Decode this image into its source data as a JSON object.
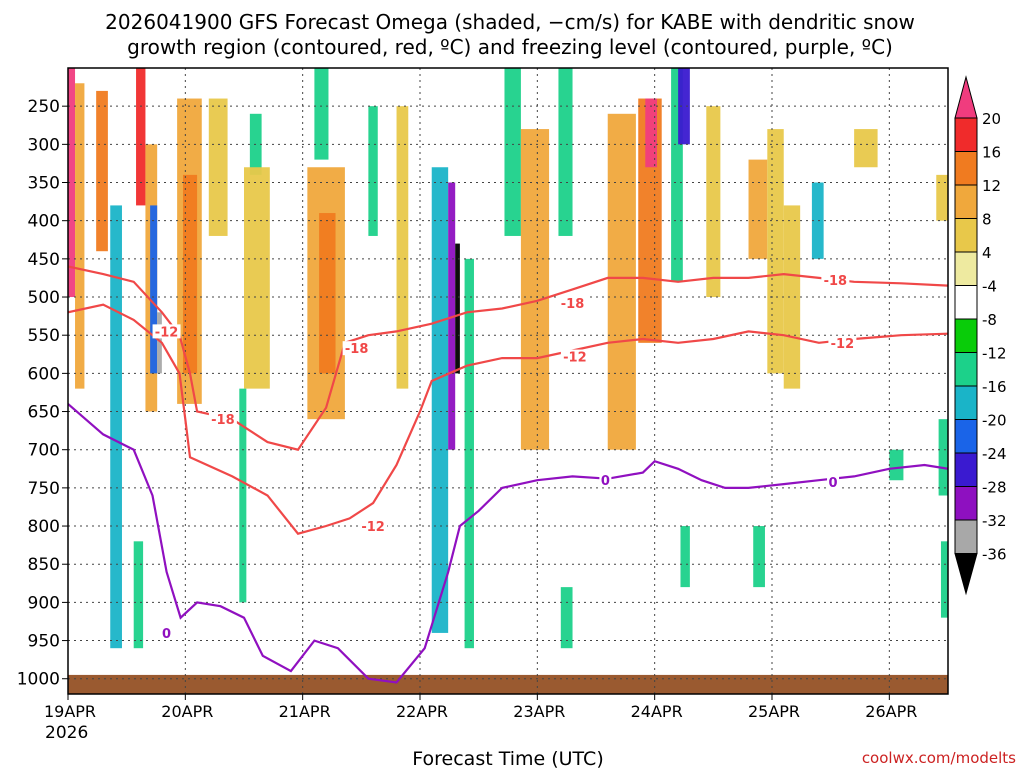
{
  "chart_data": {
    "type": "heatmap",
    "title_line1": "2026041900 GFS Forecast Omega (shaded, −cm/s) for KABE with dendritic snow",
    "title_line2": "growth region (contoured, red, ºC) and freezing level (contoured, purple, ºC)",
    "xlabel": "Forecast Time (UTC)",
    "credit": "coolwx.com/modelts",
    "year_label": "2026",
    "x_ticks": [
      {
        "label": "19APR",
        "day": 0
      },
      {
        "label": "20APR",
        "day": 1
      },
      {
        "label": "21APR",
        "day": 2
      },
      {
        "label": "22APR",
        "day": 3
      },
      {
        "label": "23APR",
        "day": 4
      },
      {
        "label": "24APR",
        "day": 5
      },
      {
        "label": "25APR",
        "day": 6
      },
      {
        "label": "26APR",
        "day": 7
      }
    ],
    "xlim_days": [
      0,
      7.5
    ],
    "y_ticks": [
      "250",
      "300",
      "350",
      "400",
      "450",
      "500",
      "550",
      "600",
      "650",
      "700",
      "750",
      "800",
      "850",
      "900",
      "950",
      "1000"
    ],
    "ylim_hpa": [
      200,
      1020
    ],
    "ground_hpa": 995,
    "colorbar": {
      "labels": [
        "20",
        "16",
        "12",
        "8",
        "4",
        "-4",
        "-8",
        "-12",
        "-16",
        "-20",
        "-24",
        "-28",
        "-32",
        "-36"
      ],
      "colors": [
        "#f03c7e",
        "#f02b2b",
        "#f07b20",
        "#f0a83c",
        "#e8c84a",
        "#eeeaa0",
        "#ffffff",
        "#09cc09",
        "#1cd18a",
        "#1ab4c8",
        "#1a64e8",
        "#3a1ad0",
        "#8e10c0",
        "#a8a8a8",
        "#000000"
      ]
    },
    "omega_cells": [
      {
        "d0": 0.0,
        "d1": 0.06,
        "p0": 200,
        "p1": 500,
        "v": 20
      },
      {
        "d0": 0.06,
        "d1": 0.14,
        "p0": 220,
        "p1": 620,
        "v": 8
      },
      {
        "d0": 0.24,
        "d1": 0.34,
        "p0": 230,
        "p1": 440,
        "v": 12
      },
      {
        "d0": 0.36,
        "d1": 0.46,
        "p0": 380,
        "p1": 960,
        "v": -12
      },
      {
        "d0": 0.58,
        "d1": 0.66,
        "p0": 200,
        "p1": 380,
        "v": 16
      },
      {
        "d0": 0.66,
        "d1": 0.76,
        "p0": 300,
        "p1": 650,
        "v": 8
      },
      {
        "d0": 0.7,
        "d1": 0.76,
        "p0": 380,
        "p1": 600,
        "v": -16
      },
      {
        "d0": 0.76,
        "d1": 0.8,
        "p0": 520,
        "p1": 600,
        "v": -28
      },
      {
        "d0": 0.93,
        "d1": 1.14,
        "p0": 240,
        "p1": 640,
        "v": 8
      },
      {
        "d0": 0.98,
        "d1": 1.1,
        "p0": 340,
        "p1": 600,
        "v": 12
      },
      {
        "d0": 1.2,
        "d1": 1.36,
        "p0": 240,
        "p1": 420,
        "v": 4
      },
      {
        "d0": 1.55,
        "d1": 1.65,
        "p0": 260,
        "p1": 340,
        "v": -8
      },
      {
        "d0": 1.5,
        "d1": 1.72,
        "p0": 330,
        "p1": 620,
        "v": 4
      },
      {
        "d0": 2.04,
        "d1": 2.36,
        "p0": 330,
        "p1": 660,
        "v": 8
      },
      {
        "d0": 2.14,
        "d1": 2.28,
        "p0": 390,
        "p1": 600,
        "v": 12
      },
      {
        "d0": 2.1,
        "d1": 2.22,
        "p0": 200,
        "p1": 320,
        "v": -8
      },
      {
        "d0": 2.56,
        "d1": 2.64,
        "p0": 250,
        "p1": 420,
        "v": -8
      },
      {
        "d0": 2.8,
        "d1": 2.9,
        "p0": 250,
        "p1": 620,
        "v": 4
      },
      {
        "d0": 3.1,
        "d1": 3.24,
        "p0": 330,
        "p1": 940,
        "v": -12
      },
      {
        "d0": 3.24,
        "d1": 3.3,
        "p0": 350,
        "p1": 700,
        "v": -24
      },
      {
        "d0": 3.3,
        "d1": 3.34,
        "p0": 430,
        "p1": 600,
        "v": -36
      },
      {
        "d0": 3.38,
        "d1": 3.46,
        "p0": 450,
        "p1": 960,
        "v": -8
      },
      {
        "d0": 3.72,
        "d1": 3.86,
        "p0": 200,
        "p1": 420,
        "v": -8
      },
      {
        "d0": 3.86,
        "d1": 4.1,
        "p0": 280,
        "p1": 700,
        "v": 8
      },
      {
        "d0": 4.18,
        "d1": 4.3,
        "p0": 200,
        "p1": 420,
        "v": -8
      },
      {
        "d0": 4.6,
        "d1": 4.84,
        "p0": 260,
        "p1": 700,
        "v": 8
      },
      {
        "d0": 4.86,
        "d1": 5.06,
        "p0": 240,
        "p1": 560,
        "v": 12
      },
      {
        "d0": 4.92,
        "d1": 5.02,
        "p0": 240,
        "p1": 330,
        "v": 20
      },
      {
        "d0": 5.14,
        "d1": 5.24,
        "p0": 200,
        "p1": 480,
        "v": -8
      },
      {
        "d0": 5.2,
        "d1": 5.3,
        "p0": 200,
        "p1": 300,
        "v": -20
      },
      {
        "d0": 5.44,
        "d1": 5.56,
        "p0": 250,
        "p1": 500,
        "v": 4
      },
      {
        "d0": 5.8,
        "d1": 5.96,
        "p0": 320,
        "p1": 450,
        "v": 8
      },
      {
        "d0": 5.96,
        "d1": 6.1,
        "p0": 280,
        "p1": 600,
        "v": 4
      },
      {
        "d0": 6.1,
        "d1": 6.24,
        "p0": 380,
        "p1": 620,
        "v": 4
      },
      {
        "d0": 6.34,
        "d1": 6.44,
        "p0": 350,
        "p1": 450,
        "v": -12
      },
      {
        "d0": 6.7,
        "d1": 6.9,
        "p0": 280,
        "p1": 330,
        "v": 4
      },
      {
        "d0": 7.4,
        "d1": 7.5,
        "p0": 340,
        "p1": 400,
        "v": 4
      },
      {
        "d0": 0.56,
        "d1": 0.64,
        "p0": 820,
        "p1": 960,
        "v": -8
      },
      {
        "d0": 1.46,
        "d1": 1.52,
        "p0": 620,
        "p1": 900,
        "v": -8
      },
      {
        "d0": 4.2,
        "d1": 4.3,
        "p0": 880,
        "p1": 960,
        "v": -8
      },
      {
        "d0": 5.22,
        "d1": 5.3,
        "p0": 800,
        "p1": 880,
        "v": -8
      },
      {
        "d0": 5.84,
        "d1": 5.94,
        "p0": 800,
        "p1": 880,
        "v": -8
      },
      {
        "d0": 7.42,
        "d1": 7.5,
        "p0": 660,
        "p1": 760,
        "v": -8
      },
      {
        "d0": 7.44,
        "d1": 7.5,
        "p0": 820,
        "p1": 920,
        "v": -8
      },
      {
        "d0": 7.0,
        "d1": 7.12,
        "p0": 700,
        "p1": 740,
        "v": -8
      }
    ],
    "contours": [
      {
        "name": "-18",
        "color": "#f04848",
        "label": "-18",
        "label_pos": [
          2.46,
          567
        ],
        "points": [
          [
            0,
            460
          ],
          [
            0.3,
            470
          ],
          [
            0.56,
            480
          ],
          [
            0.8,
            520
          ],
          [
            0.95,
            550
          ],
          [
            1.04,
            600
          ],
          [
            1.1,
            650
          ],
          [
            1.4,
            660
          ],
          [
            1.7,
            690
          ],
          [
            1.96,
            700
          ],
          [
            2.2,
            645
          ],
          [
            2.36,
            560
          ],
          [
            2.56,
            550
          ],
          [
            2.8,
            545
          ],
          [
            3.1,
            535
          ],
          [
            3.4,
            520
          ],
          [
            3.7,
            515
          ],
          [
            4.0,
            505
          ],
          [
            4.3,
            490
          ],
          [
            4.6,
            475
          ],
          [
            4.9,
            475
          ],
          [
            5.2,
            480
          ],
          [
            5.5,
            475
          ],
          [
            5.8,
            475
          ],
          [
            6.1,
            470
          ],
          [
            6.4,
            475
          ],
          [
            6.7,
            480
          ],
          [
            7.1,
            482
          ],
          [
            7.5,
            485
          ]
        ],
        "labels": [
          {
            "text": "-18",
            "d": 2.46,
            "p": 567
          },
          {
            "text": "-18",
            "d": 1.32,
            "p": 660
          },
          {
            "text": "-18",
            "d": 4.3,
            "p": 508
          },
          {
            "text": "-18",
            "d": 6.54,
            "p": 478
          }
        ]
      },
      {
        "name": "-12",
        "color": "#f04848",
        "points": [
          [
            0,
            520
          ],
          [
            0.3,
            510
          ],
          [
            0.56,
            530
          ],
          [
            0.8,
            560
          ],
          [
            0.95,
            600
          ],
          [
            1.0,
            660
          ],
          [
            1.04,
            710
          ],
          [
            1.4,
            735
          ],
          [
            1.7,
            760
          ],
          [
            1.96,
            810
          ],
          [
            2.2,
            800
          ],
          [
            2.4,
            790
          ],
          [
            2.6,
            770
          ],
          [
            2.8,
            720
          ],
          [
            3.0,
            650
          ],
          [
            3.1,
            610
          ],
          [
            3.4,
            590
          ],
          [
            3.7,
            580
          ],
          [
            4.0,
            580
          ],
          [
            4.3,
            570
          ],
          [
            4.6,
            560
          ],
          [
            4.9,
            555
          ],
          [
            5.2,
            560
          ],
          [
            5.5,
            555
          ],
          [
            5.8,
            545
          ],
          [
            6.1,
            550
          ],
          [
            6.4,
            560
          ],
          [
            6.7,
            555
          ],
          [
            7.1,
            550
          ],
          [
            7.5,
            548
          ]
        ],
        "labels": [
          {
            "text": "-12",
            "d": 2.6,
            "p": 800
          },
          {
            "text": "-12",
            "d": 4.32,
            "p": 578
          },
          {
            "text": "-12",
            "d": 6.6,
            "p": 560
          },
          {
            "text": "-12",
            "d": 0.84,
            "p": 545
          }
        ]
      },
      {
        "name": "0",
        "color": "#9010c0",
        "points": [
          [
            0,
            640
          ],
          [
            0.3,
            680
          ],
          [
            0.56,
            700
          ],
          [
            0.72,
            760
          ],
          [
            0.84,
            860
          ],
          [
            0.96,
            920
          ],
          [
            1.1,
            900
          ],
          [
            1.3,
            905
          ],
          [
            1.5,
            920
          ],
          [
            1.66,
            970
          ],
          [
            1.9,
            990
          ],
          [
            2.1,
            950
          ],
          [
            2.3,
            960
          ],
          [
            2.56,
            1000
          ],
          [
            2.8,
            1005
          ],
          [
            3.04,
            960
          ],
          [
            3.24,
            860
          ],
          [
            3.34,
            800
          ],
          [
            3.5,
            780
          ],
          [
            3.7,
            750
          ],
          [
            4.0,
            740
          ],
          [
            4.3,
            735
          ],
          [
            4.6,
            738
          ],
          [
            4.9,
            730
          ],
          [
            5.0,
            715
          ],
          [
            5.2,
            725
          ],
          [
            5.4,
            740
          ],
          [
            5.6,
            750
          ],
          [
            5.8,
            750
          ],
          [
            6.1,
            745
          ],
          [
            6.4,
            740
          ],
          [
            6.7,
            735
          ],
          [
            7.0,
            725
          ],
          [
            7.3,
            720
          ],
          [
            7.5,
            725
          ]
        ],
        "labels": [
          {
            "text": "0",
            "d": 4.58,
            "p": 740
          },
          {
            "text": "0",
            "d": 6.52,
            "p": 742
          },
          {
            "text": "0",
            "d": 0.84,
            "p": 940
          }
        ]
      }
    ]
  }
}
